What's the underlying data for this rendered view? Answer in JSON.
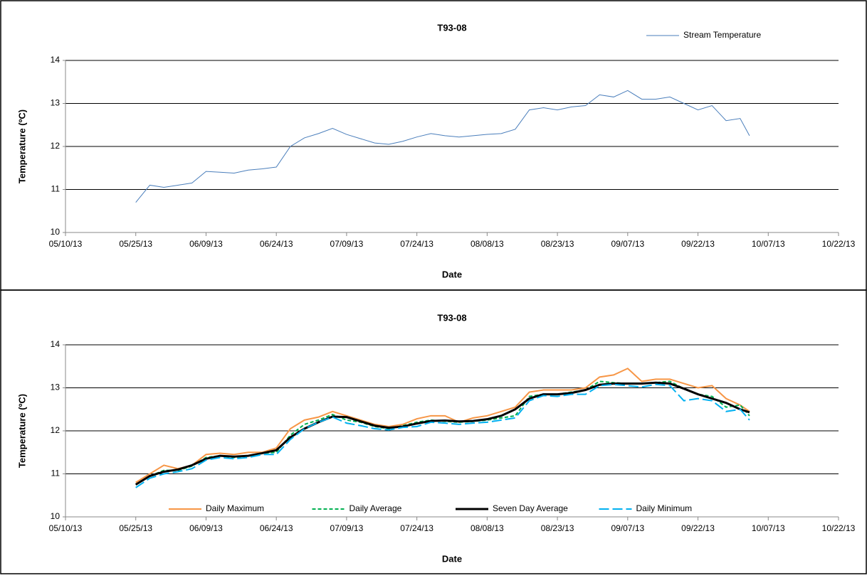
{
  "chart_data": [
    {
      "type": "line",
      "title": "T93-08",
      "x_label": "Date",
      "y_label": "Temperature (ºC)",
      "x": [
        "05/25/13",
        "05/28/13",
        "05/31/13",
        "06/03/13",
        "06/06/13",
        "06/09/13",
        "06/12/13",
        "06/15/13",
        "06/18/13",
        "06/21/13",
        "06/24/13",
        "06/27/13",
        "06/30/13",
        "07/03/13",
        "07/06/13",
        "07/09/13",
        "07/12/13",
        "07/15/13",
        "07/18/13",
        "07/21/13",
        "07/24/13",
        "07/27/13",
        "07/30/13",
        "08/02/13",
        "08/05/13",
        "08/08/13",
        "08/11/13",
        "08/14/13",
        "08/17/13",
        "08/20/13",
        "08/23/13",
        "08/26/13",
        "08/29/13",
        "09/01/13",
        "09/04/13",
        "09/07/13",
        "09/10/13",
        "09/13/13",
        "09/16/13",
        "09/19/13",
        "09/22/13",
        "09/25/13",
        "09/28/13",
        "10/01/13",
        "10/03/13"
      ],
      "series": [
        {
          "name": "Stream Temperature",
          "color": "#4a7ebb",
          "width": 1,
          "dash": "solid",
          "values": [
            10.7,
            11.1,
            11.05,
            11.1,
            11.15,
            11.42,
            11.4,
            11.38,
            11.45,
            11.48,
            11.52,
            12.0,
            12.2,
            12.3,
            12.42,
            12.28,
            12.18,
            12.08,
            12.05,
            12.12,
            12.22,
            12.3,
            12.25,
            12.22,
            12.25,
            12.28,
            12.3,
            12.4,
            12.85,
            12.9,
            12.85,
            12.92,
            12.95,
            13.2,
            13.15,
            13.3,
            13.1,
            13.1,
            13.15,
            13.0,
            12.85,
            12.95,
            12.6,
            12.65,
            12.25
          ]
        }
      ],
      "xlim": [
        "05/10/13",
        "10/22/13"
      ],
      "xticks": [
        "05/10/13",
        "05/25/13",
        "06/09/13",
        "06/24/13",
        "07/09/13",
        "07/24/13",
        "08/08/13",
        "08/23/13",
        "09/07/13",
        "09/22/13",
        "10/07/13",
        "10/22/13"
      ],
      "ylim": [
        10,
        14
      ],
      "yticks": [
        10,
        11,
        12,
        13,
        14
      ],
      "grid": true,
      "legend": "top-right"
    },
    {
      "type": "line",
      "title": "T93-08",
      "x_label": "Date",
      "y_label": "Temperature (ºC)",
      "x": [
        "05/25/13",
        "05/28/13",
        "05/31/13",
        "06/03/13",
        "06/06/13",
        "06/09/13",
        "06/12/13",
        "06/15/13",
        "06/18/13",
        "06/21/13",
        "06/24/13",
        "06/27/13",
        "06/30/13",
        "07/03/13",
        "07/06/13",
        "07/09/13",
        "07/12/13",
        "07/15/13",
        "07/18/13",
        "07/21/13",
        "07/24/13",
        "07/27/13",
        "07/30/13",
        "08/02/13",
        "08/05/13",
        "08/08/13",
        "08/11/13",
        "08/14/13",
        "08/17/13",
        "08/20/13",
        "08/23/13",
        "08/26/13",
        "08/29/13",
        "09/01/13",
        "09/04/13",
        "09/07/13",
        "09/10/13",
        "09/13/13",
        "09/16/13",
        "09/19/13",
        "09/22/13",
        "09/25/13",
        "09/28/13",
        "10/01/13",
        "10/03/13"
      ],
      "series": [
        {
          "name": "Daily Maximum",
          "color": "#f79646",
          "width": 2,
          "dash": "solid",
          "values": [
            10.8,
            11.0,
            11.2,
            11.12,
            11.2,
            11.45,
            11.48,
            11.45,
            11.5,
            11.5,
            11.6,
            12.05,
            12.25,
            12.32,
            12.45,
            12.35,
            12.25,
            12.15,
            12.1,
            12.15,
            12.28,
            12.35,
            12.35,
            12.2,
            12.3,
            12.35,
            12.45,
            12.55,
            12.9,
            12.95,
            12.95,
            12.95,
            13.0,
            13.25,
            13.3,
            13.45,
            13.15,
            13.2,
            13.2,
            13.1,
            13.0,
            13.05,
            12.75,
            12.6,
            12.45
          ]
        },
        {
          "name": "Daily Average",
          "color": "#00b050",
          "width": 2,
          "dash": "short",
          "values": [
            10.75,
            10.95,
            11.08,
            11.08,
            11.18,
            11.38,
            11.42,
            11.38,
            11.42,
            11.48,
            11.5,
            11.9,
            12.15,
            12.25,
            12.38,
            12.25,
            12.2,
            12.1,
            12.05,
            12.12,
            12.2,
            12.25,
            12.22,
            12.2,
            12.22,
            12.25,
            12.3,
            12.35,
            12.8,
            12.85,
            12.85,
            12.9,
            12.95,
            13.15,
            13.12,
            13.1,
            13.1,
            13.12,
            13.15,
            12.98,
            12.85,
            12.8,
            12.55,
            12.6,
            12.35
          ]
        },
        {
          "name": "Seven Day Average",
          "color": "#000000",
          "width": 3,
          "dash": "solid",
          "values": [
            10.75,
            10.95,
            11.05,
            11.1,
            11.2,
            11.35,
            11.42,
            11.4,
            11.42,
            11.48,
            11.55,
            11.85,
            12.05,
            12.2,
            12.33,
            12.32,
            12.22,
            12.12,
            12.07,
            12.1,
            12.17,
            12.23,
            12.24,
            12.22,
            12.23,
            12.27,
            12.35,
            12.5,
            12.75,
            12.85,
            12.85,
            12.88,
            12.95,
            13.07,
            13.1,
            13.1,
            13.1,
            13.12,
            13.1,
            12.98,
            12.85,
            12.75,
            12.65,
            12.5,
            12.43
          ]
        },
        {
          "name": "Daily Minimum",
          "color": "#00b0f0",
          "width": 2,
          "dash": "long",
          "values": [
            10.68,
            10.9,
            11.0,
            11.05,
            11.12,
            11.32,
            11.38,
            11.35,
            11.38,
            11.45,
            11.45,
            11.8,
            12.05,
            12.2,
            12.32,
            12.18,
            12.12,
            12.05,
            12.02,
            12.08,
            12.1,
            12.2,
            12.18,
            12.15,
            12.18,
            12.2,
            12.25,
            12.3,
            12.7,
            12.82,
            12.8,
            12.85,
            12.85,
            13.05,
            13.08,
            13.05,
            13.02,
            13.08,
            13.05,
            12.7,
            12.75,
            12.7,
            12.45,
            12.5,
            12.25
          ]
        }
      ],
      "xlim": [
        "05/10/13",
        "10/22/13"
      ],
      "xticks": [
        "05/10/13",
        "05/25/13",
        "06/09/13",
        "06/24/13",
        "07/09/13",
        "07/24/13",
        "08/08/13",
        "08/23/13",
        "09/07/13",
        "09/22/13",
        "10/07/13",
        "10/22/13"
      ],
      "ylim": [
        10,
        14
      ],
      "yticks": [
        10,
        11,
        12,
        13,
        14
      ],
      "grid": true,
      "legend": "bottom"
    }
  ]
}
